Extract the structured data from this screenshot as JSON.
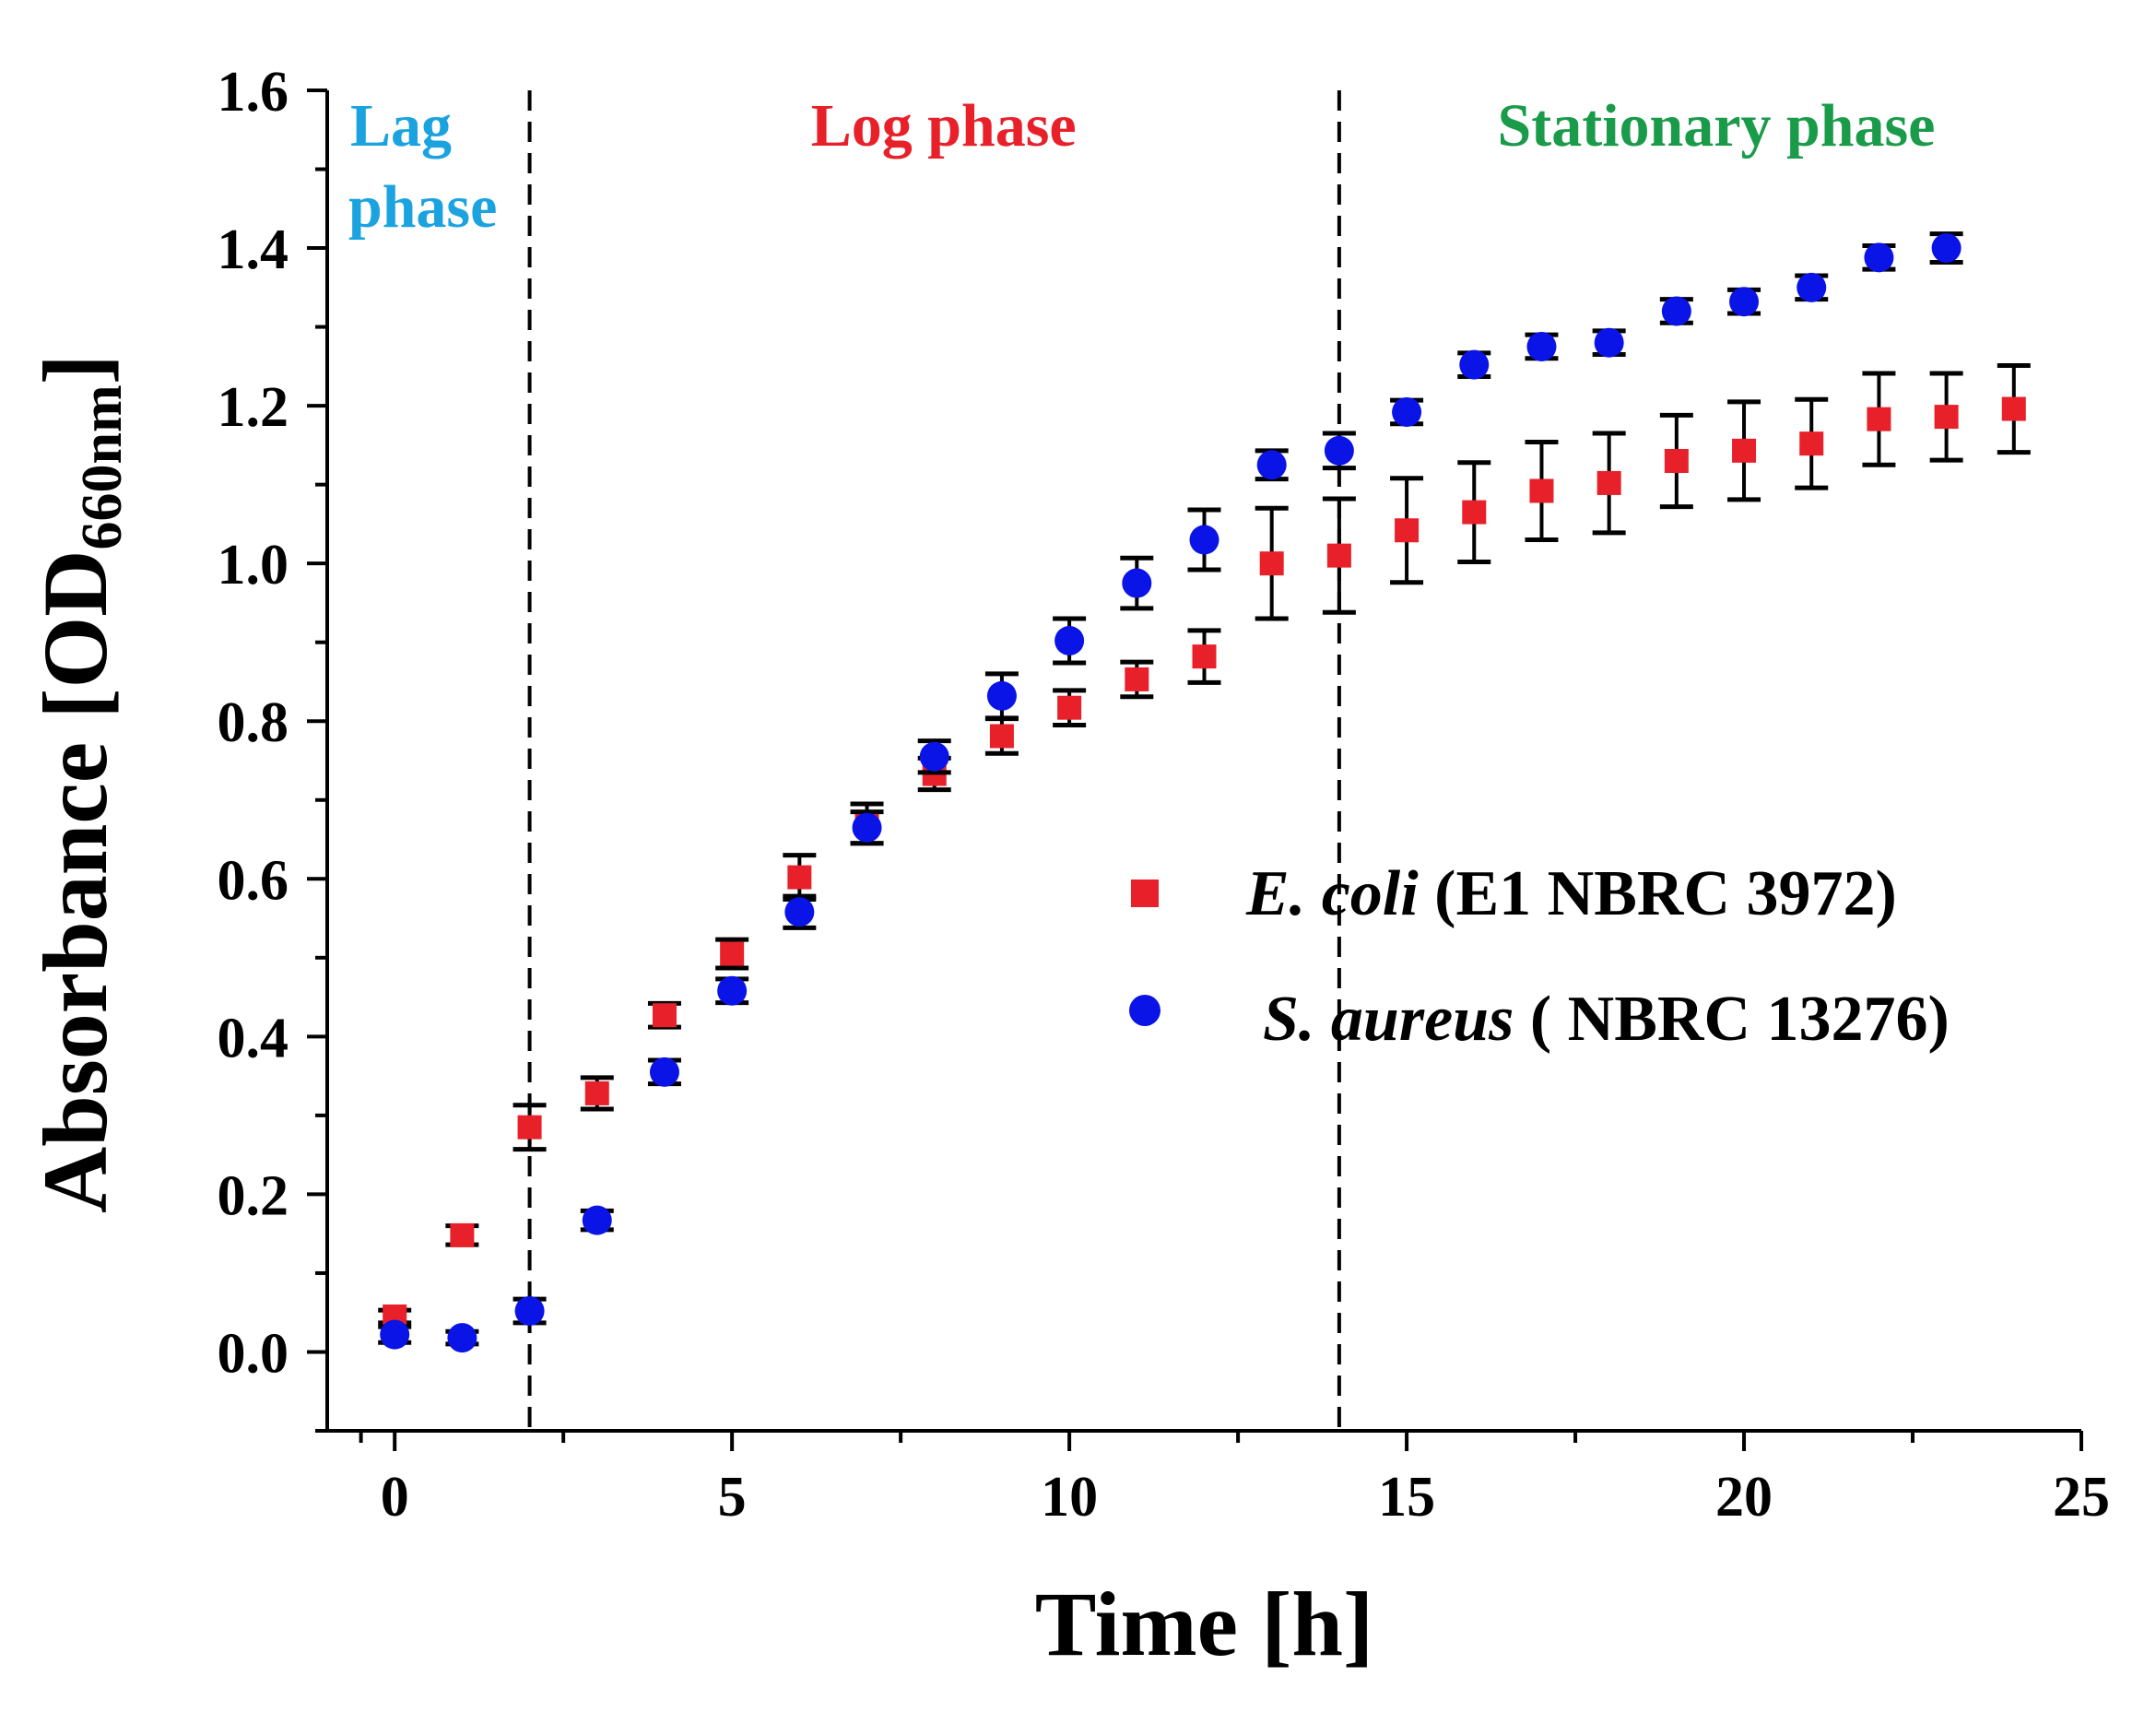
{
  "chart_data": {
    "type": "scatter",
    "title": "",
    "xlabel": "Time [h]",
    "ylabel_main": "Absorbance [OD",
    "ylabel_sub": "660nm",
    "ylabel_close": "]",
    "xlim": [
      -1,
      25
    ],
    "ylim": [
      -0.1,
      1.6
    ],
    "xticks": [
      "0",
      "5",
      "10",
      "15",
      "20",
      "25"
    ],
    "xtick_values": [
      0,
      5,
      10,
      15,
      20,
      25
    ],
    "yticks": [
      "0.0",
      "0.2",
      "0.4",
      "0.6",
      "0.8",
      "1.0",
      "1.2",
      "1.4",
      "1.6"
    ],
    "ytick_values": [
      0.0,
      0.2,
      0.4,
      0.6,
      0.8,
      1.0,
      1.2,
      1.4,
      1.6
    ],
    "phase_dividers": [
      2,
      14
    ],
    "phases": [
      {
        "line1": "Lag",
        "line2": "phase",
        "color": "#1ba3e0"
      },
      {
        "line1": "Log phase",
        "color": "#e8202a"
      },
      {
        "line1": "Stationary phase",
        "color": "#1a9b4a"
      }
    ],
    "series": [
      {
        "name_italic": "E. coli",
        "name_rest": " (E1 NBRC 3972)",
        "marker": "square",
        "color": "#e8202a",
        "x": [
          0,
          1,
          2,
          3,
          4,
          5,
          6,
          7,
          8,
          9,
          10,
          11,
          12,
          13,
          14,
          15,
          16,
          17,
          18,
          19,
          20,
          21,
          22,
          23,
          24
        ],
        "y": [
          0.045,
          0.148,
          0.285,
          0.328,
          0.427,
          0.505,
          0.602,
          0.67,
          0.733,
          0.781,
          0.817,
          0.853,
          0.882,
          1.0,
          1.01,
          1.042,
          1.065,
          1.092,
          1.102,
          1.13,
          1.143,
          1.152,
          1.183,
          1.186,
          1.196
        ],
        "err": [
          0.008,
          0.012,
          0.028,
          0.02,
          0.015,
          0.018,
          0.028,
          0.025,
          0.02,
          0.022,
          0.022,
          0.022,
          0.033,
          0.07,
          0.072,
          0.066,
          0.063,
          0.062,
          0.063,
          0.058,
          0.062,
          0.056,
          0.058,
          0.055,
          0.055
        ]
      },
      {
        "name_italic": "S. aureus",
        "name_rest": " ( NBRC 13276)",
        "marker": "circle",
        "color": "#0a14e6",
        "x": [
          0,
          1,
          2,
          3,
          4,
          5,
          6,
          7,
          8,
          9,
          10,
          11,
          12,
          13,
          14,
          15,
          16,
          17,
          18,
          19,
          20,
          21,
          22,
          23
        ],
        "y": [
          0.022,
          0.018,
          0.052,
          0.167,
          0.355,
          0.458,
          0.558,
          0.665,
          0.755,
          0.832,
          0.902,
          0.975,
          1.03,
          1.125,
          1.143,
          1.192,
          1.252,
          1.275,
          1.28,
          1.32,
          1.332,
          1.35,
          1.388,
          1.4
        ],
        "err": [
          0.01,
          0.008,
          0.015,
          0.012,
          0.015,
          0.015,
          0.02,
          0.02,
          0.02,
          0.028,
          0.028,
          0.032,
          0.038,
          0.018,
          0.022,
          0.015,
          0.015,
          0.015,
          0.015,
          0.015,
          0.015,
          0.015,
          0.015,
          0.018
        ]
      }
    ]
  }
}
